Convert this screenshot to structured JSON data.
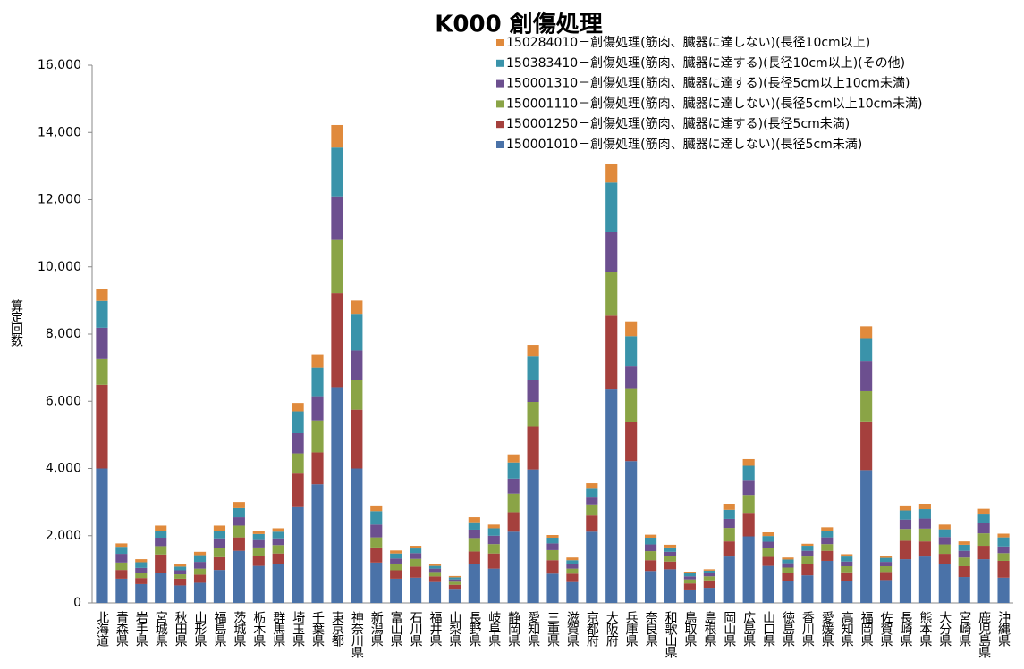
{
  "chart_data": {
    "type": "stacked_bar",
    "title": "K000 創傷処理",
    "y_label": "算定回数",
    "categories": [
      "北海道",
      "青森県",
      "岩手県",
      "宮城県",
      "秋田県",
      "山形県",
      "福島県",
      "茨城県",
      "栃木県",
      "群馬県",
      "埼玉県",
      "千葉県",
      "東京都",
      "神奈川県",
      "新潟県",
      "富山県",
      "石川県",
      "福井県",
      "山梨県",
      "長野県",
      "岐阜県",
      "静岡県",
      "愛知県",
      "三重県",
      "滋賀県",
      "京都府",
      "大阪府",
      "兵庫県",
      "奈良県",
      "和歌山県",
      "鳥取県",
      "島根県",
      "岡山県",
      "広島県",
      "山口県",
      "徳島県",
      "香川県",
      "愛媛県",
      "高知県",
      "福岡県",
      "佐賀県",
      "長崎県",
      "熊本県",
      "大分県",
      "宮崎県",
      "鹿児島県",
      "沖縄県"
    ],
    "series": [
      {
        "name": "150001010－創傷処理(筋肉、臓器に達しない)(長径5cm未満)",
        "color": "#4a72a8",
        "values": [
          4000,
          720,
          560,
          900,
          520,
          600,
          980,
          1550,
          1100,
          1150,
          2850,
          3530,
          6420,
          4000,
          1200,
          720,
          750,
          620,
          420,
          1150,
          1020,
          2120,
          3970,
          870,
          620,
          2120,
          6350,
          4220,
          950,
          1000,
          400,
          450,
          1380,
          1980,
          1100,
          650,
          820,
          1250,
          640,
          3950,
          680,
          1300,
          1380,
          1150,
          770,
          1300,
          750
        ]
      },
      {
        "name": "150001250－創傷処理(筋肉、臓器に達する)(長径5cm未満)",
        "color": "#a5403d",
        "values": [
          2490,
          260,
          180,
          540,
          200,
          240,
          380,
          400,
          300,
          320,
          1000,
          950,
          2800,
          1750,
          450,
          250,
          330,
          170,
          120,
          380,
          450,
          580,
          1280,
          400,
          250,
          480,
          2200,
          1170,
          320,
          230,
          180,
          220,
          450,
          700,
          270,
          250,
          330,
          300,
          270,
          1450,
          240,
          550,
          450,
          310,
          320,
          400,
          500
        ]
      },
      {
        "name": "150001110－創傷処理(筋肉、臓器に達しない)(長径5cm以上10cm未満)",
        "color": "#8aa446",
        "values": [
          770,
          220,
          150,
          250,
          130,
          180,
          270,
          350,
          250,
          250,
          600,
          950,
          1580,
          880,
          300,
          200,
          230,
          130,
          90,
          400,
          280,
          550,
          730,
          300,
          150,
          330,
          1300,
          1000,
          270,
          170,
          120,
          120,
          400,
          530,
          270,
          150,
          230,
          200,
          180,
          900,
          170,
          350,
          380,
          280,
          260,
          370,
          230
        ]
      },
      {
        "name": "150001310－創傷処理(筋肉、臓器に達する)(長径5cm以上10cm未満)",
        "color": "#6c4f8f",
        "values": [
          930,
          260,
          150,
          250,
          120,
          200,
          290,
          250,
          220,
          200,
          600,
          720,
          1300,
          880,
          380,
          150,
          170,
          100,
          70,
          250,
          250,
          450,
          650,
          200,
          130,
          230,
          1180,
          650,
          200,
          120,
          90,
          90,
          270,
          450,
          180,
          130,
          170,
          200,
          140,
          900,
          130,
          280,
          300,
          220,
          200,
          300,
          200
        ]
      },
      {
        "name": "150383410－創傷処理(筋肉、臓器に達する)(長径10cm以上)(その他)",
        "color": "#3a93aa",
        "values": [
          800,
          210,
          170,
          200,
          110,
          200,
          230,
          270,
          180,
          200,
          650,
          850,
          1450,
          1070,
          400,
          150,
          140,
          80,
          60,
          220,
          220,
          480,
          700,
          170,
          120,
          260,
          1480,
          900,
          200,
          130,
          90,
          80,
          270,
          420,
          170,
          110,
          150,
          200,
          150,
          680,
          120,
          270,
          280,
          230,
          180,
          260,
          270
        ]
      },
      {
        "name": "150284010－創傷処理(筋肉、臓器に達しない)(長径10cm以上)",
        "color": "#e08a3c",
        "values": [
          340,
          100,
          90,
          160,
          70,
          100,
          150,
          180,
          100,
          100,
          250,
          400,
          670,
          420,
          170,
          90,
          80,
          50,
          40,
          150,
          110,
          240,
          350,
          80,
          80,
          140,
          540,
          440,
          90,
          80,
          50,
          40,
          180,
          200,
          110,
          60,
          60,
          100,
          70,
          350,
          60,
          150,
          160,
          140,
          100,
          170,
          110
        ]
      }
    ],
    "ylim": [
      0,
      16000
    ],
    "yticks": [
      0,
      {
        "value": 2000,
        "label": "2,000"
      },
      {
        "value": 4000,
        "label": "4,000"
      },
      {
        "value": 6000,
        "label": "6,000"
      },
      {
        "value": 8000,
        "label": "8,000"
      },
      {
        "value": 10000,
        "label": "10,000"
      },
      {
        "value": 12000,
        "label": "12,000"
      },
      {
        "value": 14000,
        "label": "14,000"
      },
      {
        "value": 16000,
        "label": "16,000"
      }
    ]
  }
}
